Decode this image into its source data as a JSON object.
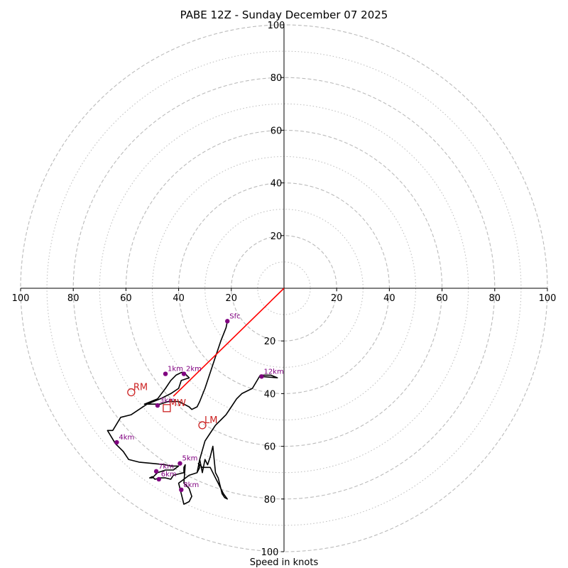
{
  "chart_data": {
    "type": "line",
    "title": "PABE 12Z - Sunday December 07 2025",
    "xlabel": "Speed in knots",
    "ylabel": "",
    "xlim": [
      -100,
      100
    ],
    "ylim": [
      -100,
      100
    ],
    "x_ticks": [
      "100",
      "80",
      "60",
      "40",
      "20",
      "20",
      "40",
      "60",
      "80",
      "100"
    ],
    "x_tick_values": [
      -100,
      -80,
      -60,
      -40,
      -20,
      20,
      40,
      60,
      80,
      100
    ],
    "y_ticks": [
      "20",
      "40",
      "60",
      "80",
      "100"
    ],
    "y_tick_values": [
      20,
      40,
      60,
      80,
      100
    ],
    "y_ticks_lower": [
      "20",
      "40",
      "60",
      "80",
      "100"
    ],
    "y_tick_values_lower": [
      -20,
      -40,
      -60,
      -80,
      -100
    ],
    "rings_major": [
      20,
      40,
      60,
      80,
      100
    ],
    "rings_minor": [
      10,
      30,
      50,
      70,
      90
    ],
    "colors": {
      "hodograph": "#000000",
      "height_marker": "#800080",
      "shear_vector": "#ff0000",
      "storm_motion": "#cc2222",
      "ring": "#bbbbbb"
    },
    "hodograph": {
      "u": [
        -21.5,
        -22,
        -24,
        -26,
        -28,
        -30,
        -32,
        -33,
        -35,
        -36,
        -38,
        -40,
        -42,
        -44,
        -47,
        -50,
        -53,
        -48,
        -45,
        -43,
        -41,
        -39,
        -38,
        -36,
        -39,
        -40,
        -43,
        -47,
        -52,
        -58,
        -62,
        -65,
        -67,
        -64,
        -61,
        -59,
        -55,
        -50,
        -45,
        -43,
        -40,
        -42,
        -45,
        -48,
        -50,
        -51,
        -50,
        -49,
        -47,
        -45,
        -43,
        -42,
        -38,
        -38,
        -37.5,
        -38,
        -36,
        -35,
        -36,
        -38,
        -40,
        -36,
        -33,
        -32,
        -32.5,
        -31,
        -30,
        -28,
        -26,
        -25,
        -24,
        -23.5,
        -22.5,
        -21.5,
        -23,
        -24,
        -25,
        -26,
        -27,
        -28,
        -29,
        -30,
        -31,
        -32,
        -33,
        -32,
        -30,
        -28,
        -26,
        -24,
        -22,
        -20,
        -18,
        -16,
        -12,
        -9,
        -5,
        -2.5,
        -8.5
      ],
      "v": [
        -12.5,
        -15,
        -20,
        -26,
        -32,
        -38,
        -43,
        -45,
        -46,
        -45,
        -44,
        -43,
        -43,
        -43,
        -44,
        -44,
        -44,
        -42,
        -38,
        -35,
        -33,
        -32,
        -32,
        -34,
        -35,
        -38,
        -40,
        -42,
        -44,
        -48,
        -49,
        -54,
        -54,
        -59,
        -62,
        -65,
        -66,
        -66.5,
        -67,
        -67.5,
        -67.5,
        -69,
        -69,
        -70,
        -72,
        -72,
        -71.5,
        -72.5,
        -72,
        -72,
        -72.5,
        -71,
        -70,
        -68,
        -67,
        -74,
        -76,
        -79,
        -81,
        -82,
        -74,
        -71,
        -70,
        -68,
        -66.5,
        -68,
        -68,
        -68,
        -72,
        -74,
        -76,
        -78,
        -79.5,
        -80,
        -78,
        -76,
        -72,
        -70,
        -60,
        -64,
        -67,
        -65,
        -70,
        -65,
        -70,
        -65,
        -58,
        -55,
        -52,
        -50,
        -48,
        -45,
        -42,
        -40,
        -38,
        -33,
        -33,
        -34,
        -33.5
      ]
    },
    "height_points": [
      {
        "label": "Sfc",
        "u": -21.5,
        "v": -12.5
      },
      {
        "label": "1km",
        "u": -45,
        "v": -32.5
      },
      {
        "label": "2km",
        "u": -38,
        "v": -32.5
      },
      {
        "label": "3km",
        "u": -48,
        "v": -44.5
      },
      {
        "label": "4km",
        "u": -63.5,
        "v": -58.5
      },
      {
        "label": "5km",
        "u": -39.5,
        "v": -66.5
      },
      {
        "label": "7km",
        "u": -48.5,
        "v": -69.5
      },
      {
        "label": "6km",
        "u": -47.5,
        "v": -72.5
      },
      {
        "label": "8km",
        "u": -39,
        "v": -76.5
      },
      {
        "label": "12km",
        "u": -8.5,
        "v": -33.5
      }
    ],
    "shear_vector": {
      "u0": 0,
      "v0": 0,
      "u1": -42,
      "v1": -41
    },
    "storm_motion": [
      {
        "label": "RM",
        "u": -58,
        "v": -39.5,
        "marker": "circle"
      },
      {
        "label": "MW",
        "u": -44.5,
        "v": -45.5,
        "marker": "square"
      },
      {
        "label": "LM",
        "u": -31,
        "v": -52,
        "marker": "circle"
      }
    ]
  }
}
